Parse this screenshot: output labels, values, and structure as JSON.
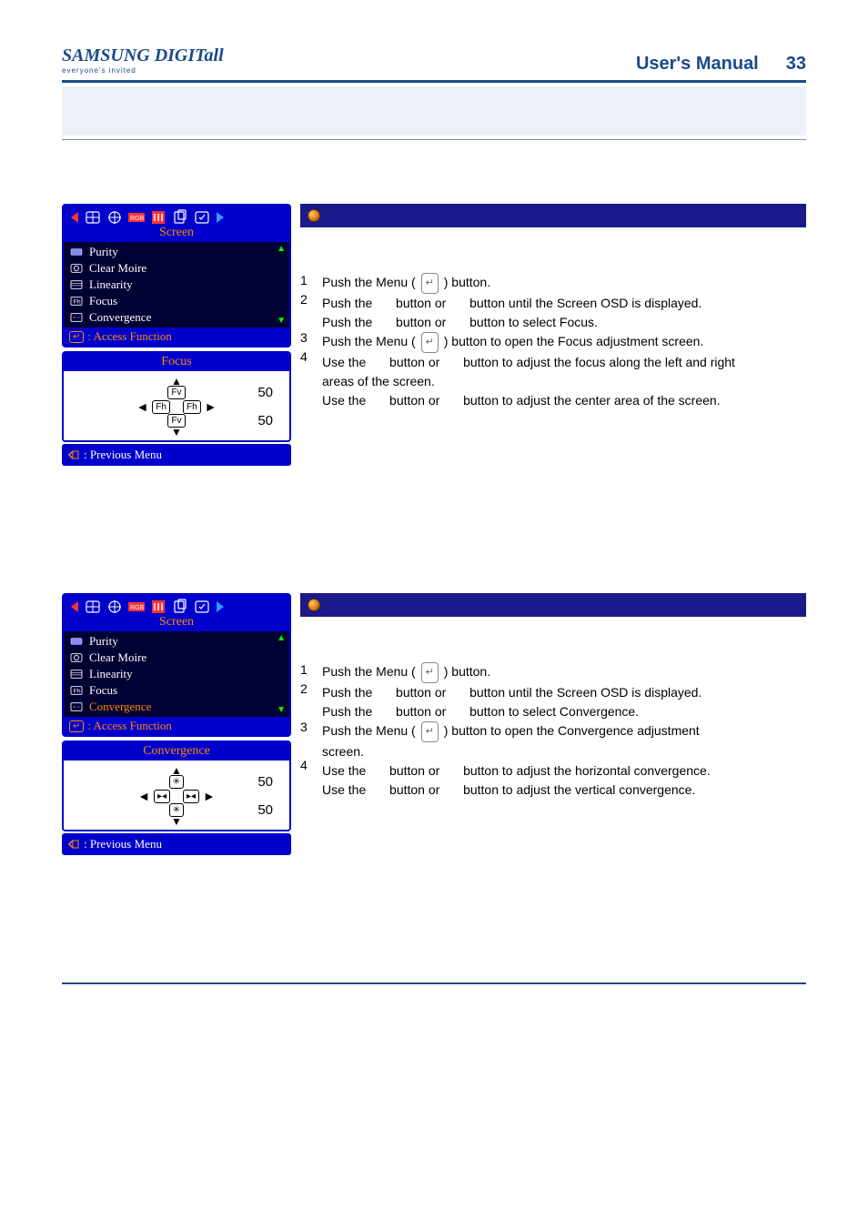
{
  "header": {
    "logo_main": "SAMSUNG DIGITall",
    "logo_sub": "everyone's invited",
    "title": "User's Manual",
    "page_number": "33"
  },
  "colors": {
    "brand_blue": "#1a4a8a",
    "osd_blue": "#0000cc",
    "osd_orange": "#ff8800",
    "osd_dark": "#000033",
    "topic_bar": "#1a1a8a",
    "scroll_green": "#00ff00"
  },
  "sections": [
    {
      "osd": {
        "screen_label": "Screen",
        "items": [
          {
            "label": "Purity",
            "selected": false,
            "icon": "purity"
          },
          {
            "label": "Clear Moire",
            "selected": false,
            "icon": "moire"
          },
          {
            "label": "Linearity",
            "selected": false,
            "icon": "linearity"
          },
          {
            "label": "Focus",
            "selected": false,
            "icon": "focus"
          },
          {
            "label": "Convergence",
            "selected": false,
            "icon": "convergence"
          }
        ],
        "access_label": ": Access Function",
        "adjust_title": "Focus",
        "values": [
          "50",
          "50"
        ],
        "prev_label": ": Previous Menu"
      },
      "steps": {
        "numbers": [
          "1",
          "2",
          "",
          "3",
          "4",
          "",
          ""
        ],
        "lines": [
          [
            "Push the Menu ( ",
            "@enter",
            " ) button."
          ],
          [
            "Push the ",
            "@gap",
            " button or ",
            "@gap",
            " button until the Screen OSD is displayed."
          ],
          [
            "Push the ",
            "@gap",
            " button or ",
            "@gap",
            " button to select Focus."
          ],
          [
            "Push the Menu ( ",
            "@enter",
            " ) button to open the Focus adjustment screen."
          ],
          [
            "Use the ",
            "@gap",
            " button or ",
            "@gap",
            " button to adjust the focus along the left and right"
          ],
          [
            "areas of the screen."
          ],
          [
            "Use the ",
            "@gap",
            " button or ",
            "@gap",
            " button to adjust the center area of the screen."
          ]
        ]
      }
    },
    {
      "osd": {
        "screen_label": "Screen",
        "items": [
          {
            "label": "Purity",
            "selected": false,
            "icon": "purity"
          },
          {
            "label": "Clear Moire",
            "selected": false,
            "icon": "moire"
          },
          {
            "label": "Linearity",
            "selected": false,
            "icon": "linearity"
          },
          {
            "label": "Focus",
            "selected": false,
            "icon": "focus"
          },
          {
            "label": "Convergence",
            "selected": true,
            "icon": "convergence"
          }
        ],
        "access_label": ": Access Function",
        "adjust_title": "Convergence",
        "values": [
          "50",
          "50"
        ],
        "prev_label": ": Previous Menu"
      },
      "steps": {
        "numbers": [
          "1",
          "2",
          "",
          "3",
          "",
          "4",
          ""
        ],
        "lines": [
          [
            "Push the Menu ( ",
            "@enter",
            " ) button."
          ],
          [
            "Push the ",
            "@gap",
            " button or ",
            "@gap",
            " button until the Screen OSD is displayed."
          ],
          [
            "Push the ",
            "@gap",
            " button or ",
            "@gap",
            " button to select Convergence."
          ],
          [
            "Push the Menu ( ",
            "@enter",
            " ) button to open the Convergence adjustment"
          ],
          [
            "screen."
          ],
          [
            "Use the ",
            "@gap",
            " button or ",
            "@gap",
            " button to adjust the horizontal convergence."
          ],
          [
            "Use the ",
            "@gap",
            " button or ",
            "@gap",
            " button to adjust the vertical convergence."
          ]
        ]
      }
    }
  ]
}
